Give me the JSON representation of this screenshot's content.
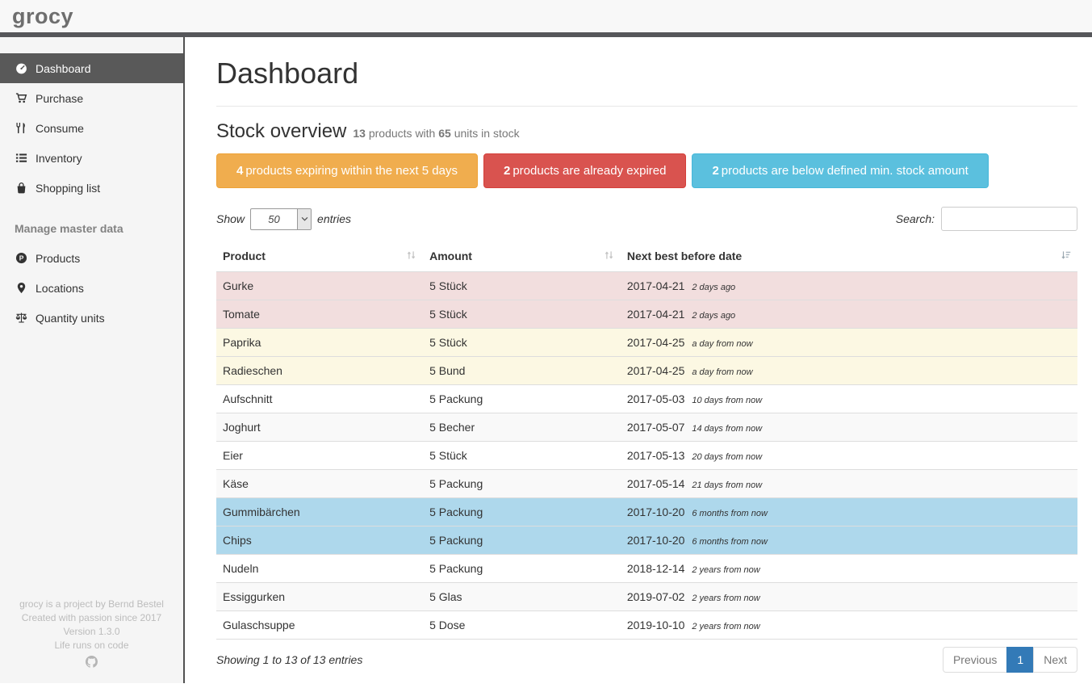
{
  "navbar": {
    "logo": "grocy"
  },
  "sidebar": {
    "nav_items": [
      {
        "label": "Dashboard",
        "icon": "dashboard",
        "state": "active"
      },
      {
        "label": "Purchase",
        "icon": "shopping-cart",
        "state": ""
      },
      {
        "label": "Consume",
        "icon": "utensils",
        "state": ""
      },
      {
        "label": "Inventory",
        "icon": "list",
        "state": ""
      },
      {
        "label": "Shopping list",
        "icon": "shopping-bag",
        "state": ""
      }
    ],
    "master_data_heading": "Manage master data",
    "master_items": [
      {
        "label": "Products",
        "icon": "product",
        "state": ""
      },
      {
        "label": "Locations",
        "icon": "location-marker",
        "state": ""
      },
      {
        "label": "Quantity units",
        "icon": "scales",
        "state": ""
      }
    ],
    "footer": {
      "line1": "grocy is a project by Bernd Bestel",
      "line2": "Created with passion since 2017",
      "line3": "Version 1.3.0",
      "line4": "Life runs on code"
    }
  },
  "page": {
    "title": "Dashboard"
  },
  "stock_overview": {
    "title": "Stock overview",
    "products_count": "13",
    "products_text": "products with",
    "units_count": "65",
    "units_text": "units in stock",
    "alerts": [
      {
        "count": "4",
        "text": "products expiring within the next 5 days",
        "type": "warning",
        "color": "#f0ad4e"
      },
      {
        "count": "2",
        "text": "products are already expired",
        "type": "danger",
        "color": "#d9534f"
      },
      {
        "count": "2",
        "text": "products are below defined min. stock amount",
        "type": "info",
        "color": "#5bc0de"
      }
    ]
  },
  "table_controls": {
    "show_label": "Show",
    "page_length": "50",
    "entries_label": "entries",
    "search_label": "Search:",
    "search_value": ""
  },
  "table": {
    "columns": [
      {
        "label": "Product",
        "sort": "sort-both"
      },
      {
        "label": "Amount",
        "sort": "sort-both"
      },
      {
        "label": "Next best before date",
        "sort": "sort-asc"
      }
    ],
    "rows": [
      {
        "product": "Gurke",
        "amount": "5 Stück",
        "date": "2017-04-21",
        "ago": "2 days ago",
        "status": "danger"
      },
      {
        "product": "Tomate",
        "amount": "5 Stück",
        "date": "2017-04-21",
        "ago": "2 days ago",
        "status": "danger"
      },
      {
        "product": "Paprika",
        "amount": "5 Stück",
        "date": "2017-04-25",
        "ago": "a day from now",
        "status": "warning"
      },
      {
        "product": "Radieschen",
        "amount": "5 Bund",
        "date": "2017-04-25",
        "ago": "a day from now",
        "status": "warning"
      },
      {
        "product": "Aufschnitt",
        "amount": "5 Packung",
        "date": "2017-05-03",
        "ago": "10 days from now",
        "status": ""
      },
      {
        "product": "Joghurt",
        "amount": "5 Becher",
        "date": "2017-05-07",
        "ago": "14 days from now",
        "status": ""
      },
      {
        "product": "Eier",
        "amount": "5 Stück",
        "date": "2017-05-13",
        "ago": "20 days from now",
        "status": ""
      },
      {
        "product": "Käse",
        "amount": "5 Packung",
        "date": "2017-05-14",
        "ago": "21 days from now",
        "status": ""
      },
      {
        "product": "Gummibärchen",
        "amount": "5 Packung",
        "date": "2017-10-20",
        "ago": "6 months from now",
        "status": "info"
      },
      {
        "product": "Chips",
        "amount": "5 Packung",
        "date": "2017-10-20",
        "ago": "6 months from now",
        "status": "info"
      },
      {
        "product": "Nudeln",
        "amount": "5 Packung",
        "date": "2018-12-14",
        "ago": "2 years from now",
        "status": ""
      },
      {
        "product": "Essiggurken",
        "amount": "5 Glas",
        "date": "2019-07-02",
        "ago": "2 years from now",
        "status": ""
      },
      {
        "product": "Gulaschsuppe",
        "amount": "5 Dose",
        "date": "2019-10-10",
        "ago": "2 years from now",
        "status": ""
      }
    ]
  },
  "table_footer": {
    "info": "Showing 1 to 13 of 13 entries",
    "previous_label": "Previous",
    "page_number": "1",
    "next_label": "Next"
  },
  "colors": {
    "row_danger": "#f2dede",
    "row_warning": "#fcf8e3",
    "row_info": "#aed8ec",
    "pagination_active": "#337ab7",
    "sidebar_active_bg": "#595959"
  }
}
